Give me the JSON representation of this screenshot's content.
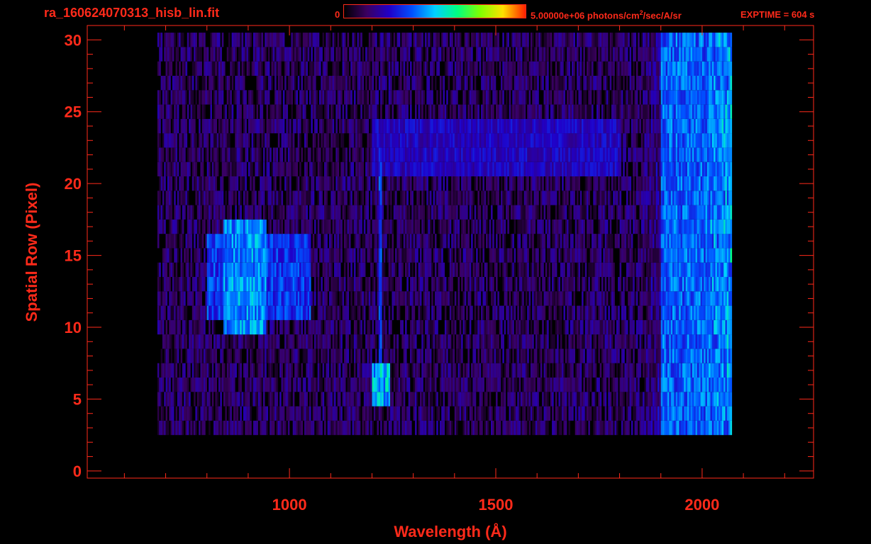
{
  "header": {
    "filename": "ra_160624070313_hisb_lin.fit",
    "colorbar_min_label": "0",
    "colorbar_max_label": "5.00000e+06 photons/cm",
    "colorbar_max_sup": "2",
    "colorbar_max_rest": "/sec/A/sr",
    "exptime": "EXPTIME = 604 s"
  },
  "colors": {
    "axis": "#ff2a1a",
    "colormap": [
      "#000000",
      "#3a0060",
      "#2000c8",
      "#0050ff",
      "#00d0ff",
      "#00ff80",
      "#80ff00",
      "#ffe000",
      "#ff2000"
    ]
  },
  "chart_data": {
    "type": "heatmap",
    "title": "",
    "xlabel": "Wavelength (Å)",
    "ylabel": "Spatial Row (Pixel)",
    "xlim": [
      510,
      2270
    ],
    "ylim": [
      -0.5,
      31
    ],
    "xticks": [
      1000,
      1500,
      2000
    ],
    "yticks": [
      0,
      5,
      10,
      15,
      20,
      25,
      30
    ],
    "zlim": [
      0,
      5000000
    ],
    "zunit": "photons/cm^2/sec/A/sr",
    "data_x_range": [
      680,
      2070
    ],
    "data_rows": [
      3,
      30
    ],
    "features": [
      {
        "x": [
          840,
          940
        ],
        "rows": [
          10,
          17
        ],
        "level": 0.45
      },
      {
        "x": [
          800,
          1050
        ],
        "rows": [
          11,
          16
        ],
        "level": 0.35
      },
      {
        "x": [
          1215,
          1220
        ],
        "rows": [
          5,
          22
        ],
        "level": 0.35
      },
      {
        "x": [
          1200,
          1240
        ],
        "rows": [
          5,
          7
        ],
        "level": 0.5
      },
      {
        "x": [
          1200,
          1800
        ],
        "rows": [
          21,
          24
        ],
        "level": 0.25
      },
      {
        "x": [
          1900,
          2070
        ],
        "rows": [
          2,
          30
        ],
        "level": 0.4
      }
    ]
  }
}
